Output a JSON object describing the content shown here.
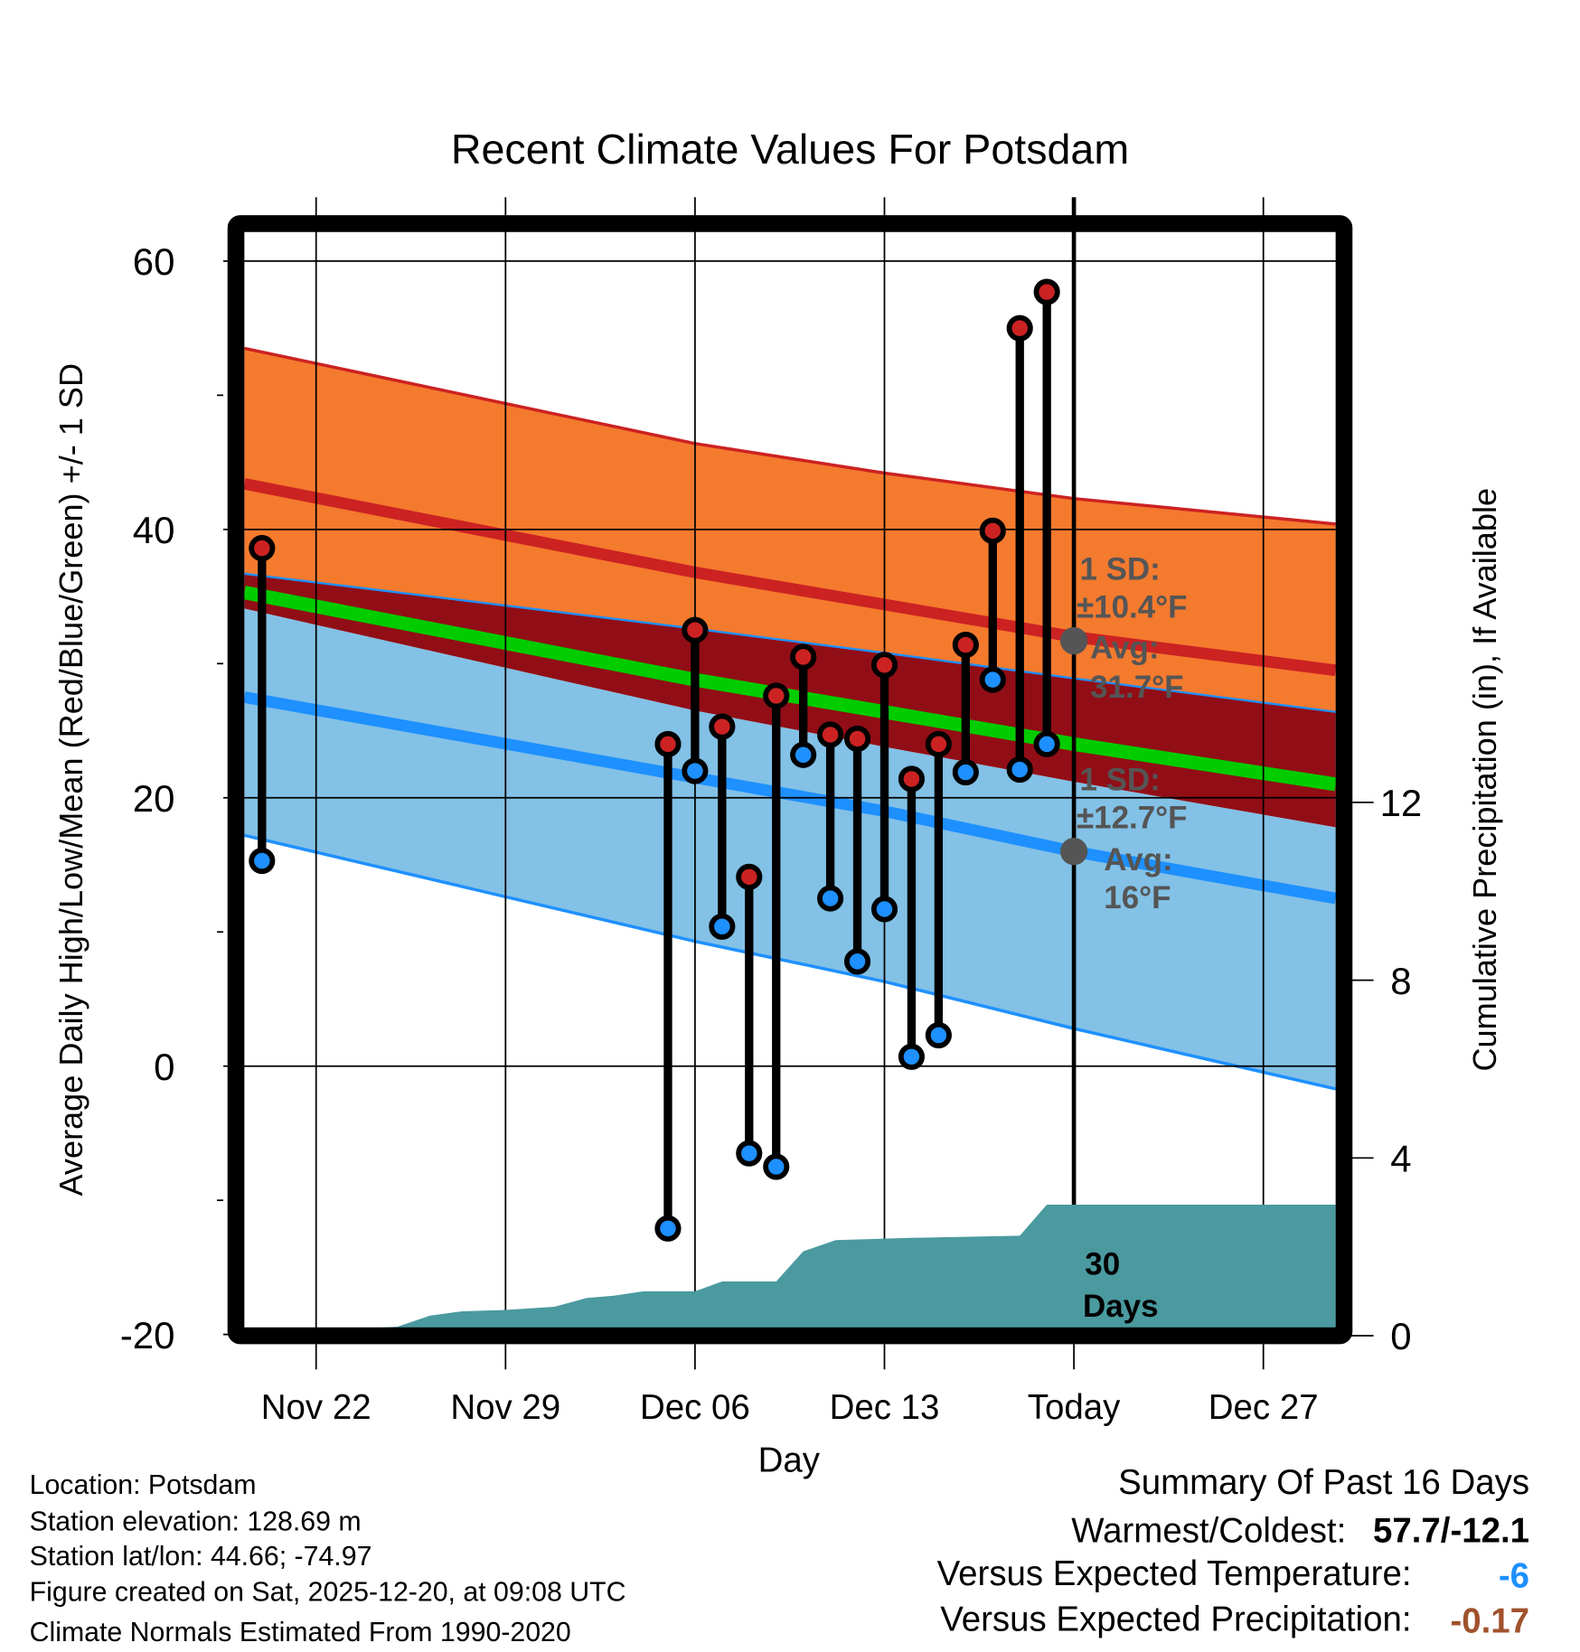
{
  "chart_data": {
    "type": "line",
    "title": "Recent Climate Values For Potsdam",
    "xlabel": "Day",
    "ylabel": "Average Daily High/Low/Mean (Red/Blue/Green) +/- 1 SD",
    "y2label": "Cumulative Precipitation (in), If Available",
    "ylim": [
      -20,
      60
    ],
    "y2lim": [
      0,
      12
    ],
    "x_unit": "days relative to Nov 22",
    "xlim": [
      -2.65,
      37.67
    ],
    "x_ticks": [
      {
        "day": 0,
        "label": "Nov 22"
      },
      {
        "day": 7,
        "label": "Nov 29"
      },
      {
        "day": 14,
        "label": "Dec 06"
      },
      {
        "day": 21,
        "label": "Dec 13"
      },
      {
        "day": 28,
        "label": "Today"
      },
      {
        "day": 35,
        "label": "Dec 27"
      }
    ],
    "y_ticks": [
      -20,
      0,
      20,
      40,
      60
    ],
    "y2_ticks": [
      0,
      4,
      8,
      12
    ],
    "grid": true,
    "normals": {
      "x": [
        -2.65,
        14,
        21,
        28,
        37.67
      ],
      "high_plus_sd": [
        53.5,
        46.4,
        44.2,
        42.3,
        40.4
      ],
      "high_mean": [
        43.4,
        36.8,
        34.4,
        32,
        29.5
      ],
      "high_minus_sd": [
        36.7,
        32.6,
        30.8,
        28.9,
        26.4
      ],
      "mean": [
        35.3,
        28.8,
        26.4,
        24,
        21
      ],
      "low_plus_sd": [
        34.1,
        26.5,
        23.8,
        21.2,
        17.8
      ],
      "low_mean": [
        27.5,
        21.5,
        19,
        16,
        12.5
      ],
      "low_minus_sd": [
        17.2,
        9.3,
        6.3,
        2.8,
        -1.7
      ]
    },
    "observations": [
      {
        "day": -2,
        "high": 38.6,
        "low": 15.3
      },
      {
        "day": 13,
        "high": 24,
        "low": -12.1
      },
      {
        "day": 14,
        "high": 32.5,
        "low": 22
      },
      {
        "day": 15,
        "high": 25.3,
        "low": 10.4
      },
      {
        "day": 16,
        "high": 14.1,
        "low": -6.5
      },
      {
        "day": 17,
        "high": 27.6,
        "low": -7.5
      },
      {
        "day": 18,
        "high": 30.5,
        "low": 23.2
      },
      {
        "day": 19,
        "high": 24.7,
        "low": 12.5
      },
      {
        "day": 20,
        "high": 24.4,
        "low": 7.8
      },
      {
        "day": 21,
        "high": 29.9,
        "low": 11.7
      },
      {
        "day": 22,
        "high": 21.4,
        "low": 0.7
      },
      {
        "day": 23,
        "high": 24,
        "low": 2.3
      },
      {
        "day": 24,
        "high": 31.4,
        "low": 21.9
      },
      {
        "day": 25,
        "high": 39.9,
        "low": 28.8
      },
      {
        "day": 26,
        "high": 55,
        "low": 22.1
      },
      {
        "day": 27,
        "high": 57.7,
        "low": 24
      }
    ],
    "precip": {
      "day": [
        0,
        1.2,
        3,
        4.2,
        5.4,
        7,
        8.8,
        10,
        11,
        12.1,
        14,
        15,
        17,
        18,
        19.2,
        21.8,
        26,
        27,
        37.67
      ],
      "value": [
        0,
        0.15,
        0.2,
        0.45,
        0.55,
        0.58,
        0.65,
        0.85,
        0.9,
        1.0,
        1.0,
        1.22,
        1.22,
        1.9,
        2.15,
        2.2,
        2.25,
        2.95,
        2.95
      ]
    },
    "annotations": {
      "high_sd_1": "1 SD:",
      "high_sd_2": "±10.4°F",
      "high_avg_1": "Avg:",
      "high_avg_2": "31.7°F",
      "low_sd_1": "1 SD:",
      "low_sd_2": "±12.7°F",
      "low_avg_1": "Avg:",
      "low_avg_2": "16°F",
      "days_1": "30",
      "days_2": "Days"
    },
    "colors": {
      "high_band": "#f47a2e",
      "high_line": "#cc2222",
      "overlap": "#910e16",
      "mean_line": "#00cc00",
      "low_band": "#83c1e6",
      "low_line": "#1e90ff",
      "precip": "#4a9aa0",
      "annot": "#555555"
    }
  },
  "footer": {
    "info": [
      "Location: Potsdam",
      "Station elevation: 128.69 m",
      "Station lat/lon: 44.66; -74.97",
      "Figure created on Sat, 2025-12-20, at 09:08 UTC",
      "Climate Normals Estimated From 1990-2020"
    ],
    "summary_title": "Summary Of Past 16 Days",
    "warm_cold_label": "Warmest/Coldest:",
    "warm_cold_value": "57.7/-12.1",
    "temp_label": "Versus Expected Temperature:",
    "temp_value": "-6",
    "precip_label": "Versus Expected Precipitation:",
    "precip_value": "-0.17"
  }
}
